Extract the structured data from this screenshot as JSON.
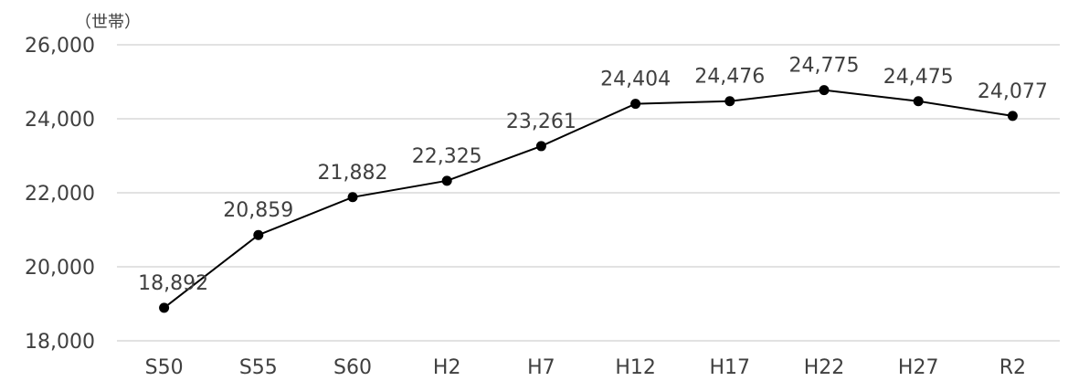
{
  "chart_data": {
    "type": "line",
    "ylabel": "（世帯）",
    "categories": [
      "S50",
      "S55",
      "S60",
      "H2",
      "H7",
      "H12",
      "H17",
      "H22",
      "H27",
      "R2"
    ],
    "values": [
      18892,
      20859,
      21882,
      22325,
      23261,
      24404,
      24476,
      24775,
      24475,
      24077
    ],
    "data_labels": [
      "18,892",
      "20,859",
      "21,882",
      "22,325",
      "23,261",
      "24,404",
      "24,476",
      "24,775",
      "24,475",
      "24,077"
    ],
    "ylim": [
      18000,
      26000
    ],
    "yticks": [
      18000,
      20000,
      22000,
      24000,
      26000
    ],
    "ytick_labels": [
      "18,000",
      "20,000",
      "22,000",
      "24,000",
      "26,000"
    ],
    "grid": true,
    "legend": "none",
    "line_color": "#000000",
    "grid_color": "#d9d9d9"
  }
}
